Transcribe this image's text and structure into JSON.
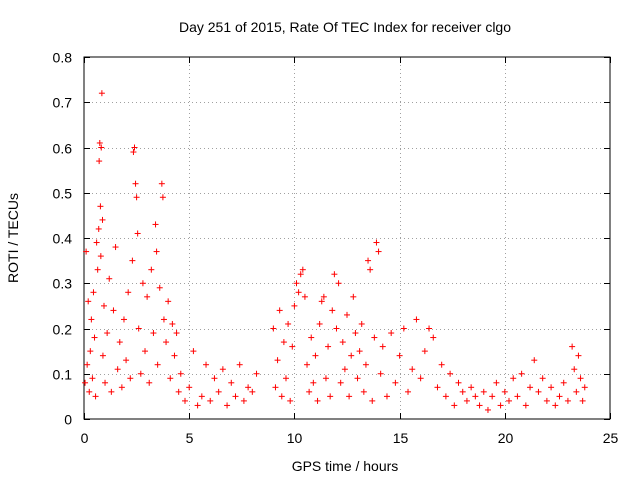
{
  "chart_data": {
    "type": "scatter",
    "title": "Day 251 of 2015, Rate Of TEC Index for receiver clgo",
    "xlabel": "GPS time / hours",
    "ylabel": "ROTI / TECUs",
    "xlim": [
      0,
      25
    ],
    "ylim": [
      0,
      0.8
    ],
    "xticks": [
      0,
      5,
      10,
      15,
      20,
      25
    ],
    "xtick_labels": [
      "0",
      "5",
      "10",
      "15",
      "20",
      "25"
    ],
    "yticks": [
      0,
      0.1,
      0.2,
      0.3,
      0.4,
      0.5,
      0.6,
      0.7,
      0.8
    ],
    "ytick_labels": [
      "0",
      "0.1",
      "0.2",
      "0.3",
      "0.4",
      "0.5",
      "0.6",
      "0.7",
      "0.8"
    ],
    "grid": true,
    "marker": "+",
    "color": "#ff0000",
    "series": [
      {
        "name": "ROTI",
        "points": [
          [
            0.05,
            0.08
          ],
          [
            0.1,
            0.37
          ],
          [
            0.15,
            0.12
          ],
          [
            0.2,
            0.26
          ],
          [
            0.25,
            0.06
          ],
          [
            0.3,
            0.15
          ],
          [
            0.35,
            0.22
          ],
          [
            0.4,
            0.09
          ],
          [
            0.45,
            0.28
          ],
          [
            0.5,
            0.18
          ],
          [
            0.55,
            0.05
          ],
          [
            0.6,
            0.39
          ],
          [
            0.65,
            0.33
          ],
          [
            0.7,
            0.42
          ],
          [
            0.72,
            0.57
          ],
          [
            0.75,
            0.61
          ],
          [
            0.78,
            0.47
          ],
          [
            0.8,
            0.36
          ],
          [
            0.82,
            0.6
          ],
          [
            0.85,
            0.72
          ],
          [
            0.88,
            0.44
          ],
          [
            0.9,
            0.14
          ],
          [
            0.95,
            0.25
          ],
          [
            1.0,
            0.08
          ],
          [
            1.1,
            0.19
          ],
          [
            1.2,
            0.31
          ],
          [
            1.3,
            0.06
          ],
          [
            1.4,
            0.24
          ],
          [
            1.5,
            0.38
          ],
          [
            1.6,
            0.11
          ],
          [
            1.7,
            0.17
          ],
          [
            1.8,
            0.07
          ],
          [
            1.9,
            0.22
          ],
          [
            2.0,
            0.13
          ],
          [
            2.1,
            0.28
          ],
          [
            2.2,
            0.09
          ],
          [
            2.3,
            0.35
          ],
          [
            2.35,
            0.59
          ],
          [
            2.4,
            0.6
          ],
          [
            2.45,
            0.52
          ],
          [
            2.5,
            0.49
          ],
          [
            2.55,
            0.41
          ],
          [
            2.6,
            0.2
          ],
          [
            2.7,
            0.1
          ],
          [
            2.8,
            0.3
          ],
          [
            2.9,
            0.15
          ],
          [
            3.0,
            0.27
          ],
          [
            3.1,
            0.08
          ],
          [
            3.2,
            0.33
          ],
          [
            3.3,
            0.19
          ],
          [
            3.4,
            0.43
          ],
          [
            3.45,
            0.37
          ],
          [
            3.5,
            0.12
          ],
          [
            3.6,
            0.29
          ],
          [
            3.7,
            0.52
          ],
          [
            3.75,
            0.49
          ],
          [
            3.8,
            0.22
          ],
          [
            3.9,
            0.17
          ],
          [
            4.0,
            0.26
          ],
          [
            4.1,
            0.09
          ],
          [
            4.2,
            0.21
          ],
          [
            4.3,
            0.14
          ],
          [
            4.4,
            0.19
          ],
          [
            4.5,
            0.06
          ],
          [
            4.6,
            0.1
          ],
          [
            4.8,
            0.04
          ],
          [
            5.0,
            0.07
          ],
          [
            5.2,
            0.15
          ],
          [
            5.4,
            0.03
          ],
          [
            5.6,
            0.05
          ],
          [
            5.8,
            0.12
          ],
          [
            6.0,
            0.04
          ],
          [
            6.2,
            0.09
          ],
          [
            6.4,
            0.06
          ],
          [
            6.6,
            0.11
          ],
          [
            6.8,
            0.03
          ],
          [
            7.0,
            0.08
          ],
          [
            7.2,
            0.05
          ],
          [
            7.4,
            0.12
          ],
          [
            7.6,
            0.04
          ],
          [
            7.8,
            0.07
          ],
          [
            8.0,
            0.06
          ],
          [
            8.2,
            0.1
          ],
          [
            9.0,
            0.2
          ],
          [
            9.1,
            0.07
          ],
          [
            9.2,
            0.13
          ],
          [
            9.3,
            0.24
          ],
          [
            9.4,
            0.05
          ],
          [
            9.5,
            0.17
          ],
          [
            9.6,
            0.09
          ],
          [
            9.7,
            0.21
          ],
          [
            9.8,
            0.04
          ],
          [
            9.9,
            0.16
          ],
          [
            10.0,
            0.25
          ],
          [
            10.1,
            0.3
          ],
          [
            10.2,
            0.28
          ],
          [
            10.3,
            0.32
          ],
          [
            10.4,
            0.33
          ],
          [
            10.5,
            0.27
          ],
          [
            10.6,
            0.12
          ],
          [
            10.7,
            0.06
          ],
          [
            10.8,
            0.18
          ],
          [
            10.9,
            0.08
          ],
          [
            11.0,
            0.14
          ],
          [
            11.1,
            0.04
          ],
          [
            11.2,
            0.21
          ],
          [
            11.3,
            0.26
          ],
          [
            11.4,
            0.27
          ],
          [
            11.5,
            0.09
          ],
          [
            11.6,
            0.16
          ],
          [
            11.7,
            0.05
          ],
          [
            11.8,
            0.24
          ],
          [
            11.9,
            0.32
          ],
          [
            12.0,
            0.2
          ],
          [
            12.1,
            0.3
          ],
          [
            12.2,
            0.08
          ],
          [
            12.3,
            0.17
          ],
          [
            12.4,
            0.11
          ],
          [
            12.5,
            0.23
          ],
          [
            12.6,
            0.05
          ],
          [
            12.7,
            0.14
          ],
          [
            12.8,
            0.27
          ],
          [
            12.9,
            0.19
          ],
          [
            13.0,
            0.09
          ],
          [
            13.1,
            0.15
          ],
          [
            13.2,
            0.21
          ],
          [
            13.3,
            0.06
          ],
          [
            13.4,
            0.12
          ],
          [
            13.5,
            0.35
          ],
          [
            13.6,
            0.33
          ],
          [
            13.7,
            0.04
          ],
          [
            13.8,
            0.18
          ],
          [
            13.9,
            0.39
          ],
          [
            14.0,
            0.37
          ],
          [
            14.1,
            0.1
          ],
          [
            14.2,
            0.16
          ],
          [
            14.4,
            0.05
          ],
          [
            14.6,
            0.19
          ],
          [
            14.8,
            0.08
          ],
          [
            15.0,
            0.14
          ],
          [
            15.2,
            0.2
          ],
          [
            15.4,
            0.06
          ],
          [
            15.6,
            0.11
          ],
          [
            15.8,
            0.22
          ],
          [
            16.0,
            0.09
          ],
          [
            16.2,
            0.15
          ],
          [
            16.4,
            0.2
          ],
          [
            16.6,
            0.18
          ],
          [
            16.8,
            0.07
          ],
          [
            17.0,
            0.12
          ],
          [
            17.2,
            0.05
          ],
          [
            17.4,
            0.1
          ],
          [
            17.6,
            0.03
          ],
          [
            17.8,
            0.08
          ],
          [
            18.0,
            0.06
          ],
          [
            18.2,
            0.04
          ],
          [
            18.4,
            0.07
          ],
          [
            18.6,
            0.05
          ],
          [
            18.8,
            0.03
          ],
          [
            19.0,
            0.06
          ],
          [
            19.2,
            0.02
          ],
          [
            19.4,
            0.05
          ],
          [
            19.6,
            0.08
          ],
          [
            19.8,
            0.03
          ],
          [
            20.0,
            0.06
          ],
          [
            20.2,
            0.04
          ],
          [
            20.4,
            0.09
          ],
          [
            20.6,
            0.05
          ],
          [
            20.8,
            0.1
          ],
          [
            21.0,
            0.03
          ],
          [
            21.2,
            0.07
          ],
          [
            21.4,
            0.13
          ],
          [
            21.6,
            0.06
          ],
          [
            21.8,
            0.09
          ],
          [
            22.0,
            0.04
          ],
          [
            22.2,
            0.07
          ],
          [
            22.4,
            0.03
          ],
          [
            22.6,
            0.05
          ],
          [
            22.8,
            0.08
          ],
          [
            23.0,
            0.04
          ],
          [
            23.2,
            0.16
          ],
          [
            23.3,
            0.11
          ],
          [
            23.4,
            0.06
          ],
          [
            23.5,
            0.14
          ],
          [
            23.6,
            0.09
          ],
          [
            23.7,
            0.04
          ],
          [
            23.8,
            0.07
          ]
        ]
      }
    ]
  }
}
